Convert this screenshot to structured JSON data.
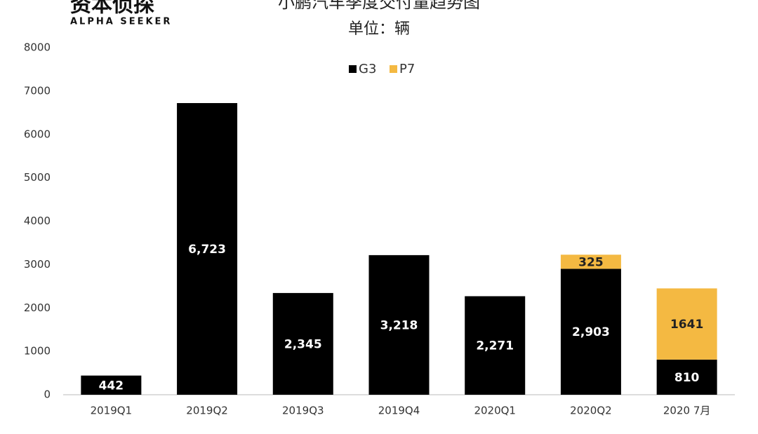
{
  "logo": {
    "name": "资本侦探",
    "tagline": "ALPHA SEEKER"
  },
  "chart_data": {
    "type": "stacked_bar",
    "title": "小鹏汽车季度交付量趋势图",
    "subtitle": "单位：辆",
    "categories": [
      "2019Q1",
      "2019Q2",
      "2019Q3",
      "2019Q4",
      "2020Q1",
      "2020Q2",
      "2020 7月"
    ],
    "series": [
      {
        "name": "G3",
        "color": "#000000",
        "values": [
          442,
          6723,
          2345,
          3218,
          2271,
          2903,
          810
        ],
        "value_labels": [
          "442",
          "6,723",
          "2,345",
          "3,218",
          "2,271",
          "2,903",
          "810"
        ]
      },
      {
        "name": "P7",
        "color": "#f4b942",
        "values": [
          null,
          null,
          null,
          null,
          null,
          325,
          1641
        ]
      }
    ],
    "ylim": [
      0,
      8000
    ],
    "yticks": [
      0,
      1000,
      2000,
      3000,
      4000,
      5000,
      6000,
      7000,
      8000
    ],
    "legend": "top",
    "grid": false
  }
}
